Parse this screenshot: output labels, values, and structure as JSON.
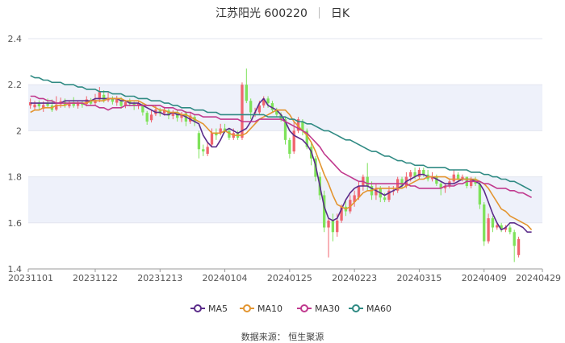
{
  "header": {
    "stock": "江苏阳光 600220",
    "period": "日K"
  },
  "source": "数据来源： 恒生聚源",
  "chart_data": {
    "type": "candlestick",
    "ylim": [
      1.4,
      2.4
    ],
    "yticks": [
      "1.4",
      "1.6",
      "1.8",
      "2",
      "2.2",
      "2.4"
    ],
    "ytick_values": [
      1.4,
      1.6,
      1.8,
      2.0,
      2.2,
      2.4
    ],
    "xticks": [
      "20231101",
      "20231122",
      "20231213",
      "20240104",
      "20240125",
      "20240223",
      "20240315",
      "20240409",
      "20240429"
    ],
    "n_days": 119,
    "xtick_index": [
      0,
      15,
      30,
      45,
      60,
      75,
      90,
      105,
      118
    ],
    "colors": {
      "up": "#f0646e",
      "down": "#7ee25a",
      "grid_band": "#eef1fa",
      "axis": "#999999"
    },
    "candles": [
      {
        "o": 2.11,
        "c": 2.124,
        "h": 2.14,
        "l": 2.096
      },
      {
        "o": 2.102,
        "c": 2.114,
        "h": 2.13,
        "l": 2.09
      },
      {
        "o": 2.118,
        "c": 2.106,
        "h": 2.132,
        "l": 2.094
      },
      {
        "o": 2.096,
        "c": 2.112,
        "h": 2.128,
        "l": 2.082
      },
      {
        "o": 2.12,
        "c": 2.108,
        "h": 2.14,
        "l": 2.098
      },
      {
        "o": 2.11,
        "c": 2.09,
        "h": 2.136,
        "l": 2.082
      },
      {
        "o": 2.092,
        "c": 2.114,
        "h": 2.15,
        "l": 2.086
      },
      {
        "o": 2.116,
        "c": 2.128,
        "h": 2.144,
        "l": 2.1
      },
      {
        "o": 2.126,
        "c": 2.11,
        "h": 2.14,
        "l": 2.1
      },
      {
        "o": 2.106,
        "c": 2.12,
        "h": 2.132,
        "l": 2.098
      },
      {
        "o": 2.124,
        "c": 2.108,
        "h": 2.146,
        "l": 2.1
      },
      {
        "o": 2.108,
        "c": 2.12,
        "h": 2.132,
        "l": 2.096
      },
      {
        "o": 2.12,
        "c": 2.112,
        "h": 2.132,
        "l": 2.1
      },
      {
        "o": 2.116,
        "c": 2.136,
        "h": 2.15,
        "l": 2.106
      },
      {
        "o": 2.132,
        "c": 2.118,
        "h": 2.142,
        "l": 2.108
      },
      {
        "o": 2.12,
        "c": 2.134,
        "h": 2.16,
        "l": 2.11
      },
      {
        "o": 2.136,
        "c": 2.168,
        "h": 2.19,
        "l": 2.124
      },
      {
        "o": 2.156,
        "c": 2.132,
        "h": 2.176,
        "l": 2.122
      },
      {
        "o": 2.132,
        "c": 2.142,
        "h": 2.166,
        "l": 2.124
      },
      {
        "o": 2.14,
        "c": 2.126,
        "h": 2.15,
        "l": 2.114
      },
      {
        "o": 2.122,
        "c": 2.138,
        "h": 2.152,
        "l": 2.108
      },
      {
        "o": 2.134,
        "c": 2.108,
        "h": 2.146,
        "l": 2.096
      },
      {
        "o": 2.11,
        "c": 2.124,
        "h": 2.134,
        "l": 2.098
      },
      {
        "o": 2.128,
        "c": 2.118,
        "h": 2.14,
        "l": 2.106
      },
      {
        "o": 2.118,
        "c": 2.108,
        "h": 2.126,
        "l": 2.09
      },
      {
        "o": 2.108,
        "c": 2.12,
        "h": 2.13,
        "l": 2.094
      },
      {
        "o": 2.112,
        "c": 2.08,
        "h": 2.118,
        "l": 2.066
      },
      {
        "o": 2.078,
        "c": 2.04,
        "h": 2.086,
        "l": 2.026
      },
      {
        "o": 2.046,
        "c": 2.07,
        "h": 2.09,
        "l": 2.036
      },
      {
        "o": 2.072,
        "c": 2.092,
        "h": 2.11,
        "l": 2.064
      },
      {
        "o": 2.088,
        "c": 2.074,
        "h": 2.1,
        "l": 2.062
      },
      {
        "o": 2.076,
        "c": 2.09,
        "h": 2.104,
        "l": 2.066
      },
      {
        "o": 2.088,
        "c": 2.066,
        "h": 2.096,
        "l": 2.05
      },
      {
        "o": 2.064,
        "c": 2.078,
        "h": 2.09,
        "l": 2.05
      },
      {
        "o": 2.08,
        "c": 2.056,
        "h": 2.088,
        "l": 2.04
      },
      {
        "o": 2.056,
        "c": 2.07,
        "h": 2.082,
        "l": 2.038
      },
      {
        "o": 2.076,
        "c": 2.04,
        "h": 2.086,
        "l": 2.02
      },
      {
        "o": 2.04,
        "c": 2.066,
        "h": 2.078,
        "l": 2.03
      },
      {
        "o": 2.06,
        "c": 2.04,
        "h": 2.07,
        "l": 2.02
      },
      {
        "o": 1.99,
        "c": 1.92,
        "h": 2.0,
        "l": 1.88
      },
      {
        "o": 1.92,
        "c": 1.91,
        "h": 1.94,
        "l": 1.89
      },
      {
        "o": 1.9,
        "c": 1.93,
        "h": 1.95,
        "l": 1.89
      },
      {
        "o": 1.94,
        "c": 1.99,
        "h": 2.01,
        "l": 1.93
      },
      {
        "o": 1.99,
        "c": 1.98,
        "h": 2.01,
        "l": 1.96
      },
      {
        "o": 1.99,
        "c": 2.01,
        "h": 2.03,
        "l": 1.98
      },
      {
        "o": 2.01,
        "c": 2.0,
        "h": 2.03,
        "l": 1.99
      },
      {
        "o": 2.0,
        "c": 1.97,
        "h": 2.01,
        "l": 1.96
      },
      {
        "o": 1.97,
        "c": 1.99,
        "h": 2.01,
        "l": 1.96
      },
      {
        "o": 1.99,
        "c": 1.97,
        "h": 2.0,
        "l": 1.96
      },
      {
        "o": 1.97,
        "c": 2.2,
        "h": 2.21,
        "l": 1.96
      },
      {
        "o": 2.2,
        "c": 2.13,
        "h": 2.27,
        "l": 2.12
      },
      {
        "o": 2.13,
        "c": 2.08,
        "h": 2.14,
        "l": 2.05
      },
      {
        "o": 2.08,
        "c": 2.08,
        "h": 2.1,
        "l": 2.06
      },
      {
        "o": 2.08,
        "c": 2.11,
        "h": 2.13,
        "l": 2.07
      },
      {
        "o": 2.11,
        "c": 2.14,
        "h": 2.15,
        "l": 2.1
      },
      {
        "o": 2.14,
        "c": 2.12,
        "h": 2.15,
        "l": 2.1
      },
      {
        "o": 2.12,
        "c": 2.09,
        "h": 2.13,
        "l": 2.08
      },
      {
        "o": 2.09,
        "c": 2.07,
        "h": 2.1,
        "l": 2.06
      },
      {
        "o": 2.07,
        "c": 2.05,
        "h": 2.08,
        "l": 2.04
      },
      {
        "o": 2.05,
        "c": 1.96,
        "h": 2.06,
        "l": 1.94
      },
      {
        "o": 1.96,
        "c": 1.9,
        "h": 1.97,
        "l": 1.88
      },
      {
        "o": 1.91,
        "c": 2.0,
        "h": 2.04,
        "l": 1.9
      },
      {
        "o": 2.0,
        "c": 2.05,
        "h": 2.06,
        "l": 1.99
      },
      {
        "o": 2.04,
        "c": 2.0,
        "h": 2.05,
        "l": 1.98
      },
      {
        "o": 2.0,
        "c": 1.93,
        "h": 2.01,
        "l": 1.92
      },
      {
        "o": 1.93,
        "c": 1.88,
        "h": 1.95,
        "l": 1.85
      },
      {
        "o": 1.88,
        "c": 1.8,
        "h": 1.89,
        "l": 1.78
      },
      {
        "o": 1.8,
        "c": 1.72,
        "h": 1.82,
        "l": 1.7
      },
      {
        "o": 1.72,
        "c": 1.58,
        "h": 1.74,
        "l": 1.56
      },
      {
        "o": 1.58,
        "c": 1.61,
        "h": 1.62,
        "l": 1.45
      },
      {
        "o": 1.61,
        "c": 1.56,
        "h": 1.64,
        "l": 1.52
      },
      {
        "o": 1.56,
        "c": 1.61,
        "h": 1.64,
        "l": 1.54
      },
      {
        "o": 1.61,
        "c": 1.67,
        "h": 1.68,
        "l": 1.6
      },
      {
        "o": 1.67,
        "c": 1.65,
        "h": 1.7,
        "l": 1.63
      },
      {
        "o": 1.65,
        "c": 1.7,
        "h": 1.72,
        "l": 1.64
      },
      {
        "o": 1.69,
        "c": 1.72,
        "h": 1.74,
        "l": 1.67
      },
      {
        "o": 1.71,
        "c": 1.76,
        "h": 1.78,
        "l": 1.7
      },
      {
        "o": 1.76,
        "c": 1.8,
        "h": 1.81,
        "l": 1.74
      },
      {
        "o": 1.8,
        "c": 1.76,
        "h": 1.86,
        "l": 1.74
      },
      {
        "o": 1.76,
        "c": 1.72,
        "h": 1.78,
        "l": 1.7
      },
      {
        "o": 1.72,
        "c": 1.75,
        "h": 1.77,
        "l": 1.7
      },
      {
        "o": 1.75,
        "c": 1.71,
        "h": 1.76,
        "l": 1.69
      },
      {
        "o": 1.71,
        "c": 1.7,
        "h": 1.73,
        "l": 1.69
      },
      {
        "o": 1.7,
        "c": 1.74,
        "h": 1.76,
        "l": 1.69
      },
      {
        "o": 1.74,
        "c": 1.74,
        "h": 1.76,
        "l": 1.72
      },
      {
        "o": 1.74,
        "c": 1.79,
        "h": 1.8,
        "l": 1.73
      },
      {
        "o": 1.79,
        "c": 1.76,
        "h": 1.8,
        "l": 1.75
      },
      {
        "o": 1.76,
        "c": 1.8,
        "h": 1.82,
        "l": 1.75
      },
      {
        "o": 1.8,
        "c": 1.82,
        "h": 1.83,
        "l": 1.78
      },
      {
        "o": 1.82,
        "c": 1.8,
        "h": 1.84,
        "l": 1.79
      },
      {
        "o": 1.8,
        "c": 1.83,
        "h": 1.84,
        "l": 1.79
      },
      {
        "o": 1.83,
        "c": 1.81,
        "h": 1.84,
        "l": 1.8
      },
      {
        "o": 1.81,
        "c": 1.79,
        "h": 1.83,
        "l": 1.78
      },
      {
        "o": 1.79,
        "c": 1.8,
        "h": 1.82,
        "l": 1.78
      },
      {
        "o": 1.8,
        "c": 1.77,
        "h": 1.81,
        "l": 1.76
      },
      {
        "o": 1.77,
        "c": 1.75,
        "h": 1.78,
        "l": 1.72
      },
      {
        "o": 1.75,
        "c": 1.76,
        "h": 1.77,
        "l": 1.73
      },
      {
        "o": 1.76,
        "c": 1.78,
        "h": 1.79,
        "l": 1.75
      },
      {
        "o": 1.78,
        "c": 1.81,
        "h": 1.83,
        "l": 1.77
      },
      {
        "o": 1.81,
        "c": 1.79,
        "h": 1.82,
        "l": 1.78
      },
      {
        "o": 1.79,
        "c": 1.8,
        "h": 1.81,
        "l": 1.78
      },
      {
        "o": 1.8,
        "c": 1.76,
        "h": 1.8,
        "l": 1.75
      },
      {
        "o": 1.76,
        "c": 1.79,
        "h": 1.8,
        "l": 1.75
      },
      {
        "o": 1.79,
        "c": 1.77,
        "h": 1.8,
        "l": 1.76
      },
      {
        "o": 1.77,
        "c": 1.68,
        "h": 1.78,
        "l": 1.66
      },
      {
        "o": 1.68,
        "c": 1.52,
        "h": 1.69,
        "l": 1.5
      },
      {
        "o": 1.52,
        "c": 1.62,
        "h": 1.64,
        "l": 1.51
      },
      {
        "o": 1.62,
        "c": 1.58,
        "h": 1.63,
        "l": 1.56
      },
      {
        "o": 1.58,
        "c": 1.59,
        "h": 1.6,
        "l": 1.57
      },
      {
        "o": 1.59,
        "c": 1.57,
        "h": 1.6,
        "l": 1.56
      },
      {
        "o": 1.57,
        "c": 1.58,
        "h": 1.59,
        "l": 1.56
      },
      {
        "o": 1.58,
        "c": 1.56,
        "h": 1.59,
        "l": 1.55
      },
      {
        "o": 1.56,
        "c": 1.5,
        "h": 1.57,
        "l": 1.43
      },
      {
        "o": 1.46,
        "c": 1.53,
        "h": 1.54,
        "l": 1.45
      }
    ],
    "series": [
      {
        "name": "MA5",
        "color": "#5b2c8a",
        "values": [
          2.12,
          2.12,
          2.12,
          2.12,
          2.12,
          2.12,
          2.12,
          2.12,
          2.13,
          2.13,
          2.13,
          2.13,
          2.13,
          2.13,
          2.13,
          2.14,
          2.14,
          2.14,
          2.14,
          2.14,
          2.14,
          2.13,
          2.13,
          2.12,
          2.12,
          2.12,
          2.11,
          2.1,
          2.09,
          2.08,
          2.08,
          2.07,
          2.07,
          2.08,
          2.07,
          2.07,
          2.06,
          2.05,
          2.04,
          2.03,
          1.98,
          1.95,
          1.93,
          1.93,
          1.96,
          2.0,
          2.01,
          2.0,
          1.99,
          2.0,
          2.01,
          2.04,
          2.08,
          2.12,
          2.14,
          2.11,
          2.1,
          2.09,
          2.07,
          2.04,
          2.0,
          1.98,
          1.97,
          1.96,
          1.94,
          1.91,
          1.85,
          1.76,
          1.67,
          1.62,
          1.61,
          1.62,
          1.66,
          1.7,
          1.73,
          1.75,
          1.76,
          1.76,
          1.76,
          1.75,
          1.74,
          1.73,
          1.72,
          1.73,
          1.74,
          1.75,
          1.76,
          1.78,
          1.79,
          1.8,
          1.81,
          1.81,
          1.8,
          1.8,
          1.79,
          1.78,
          1.77,
          1.77,
          1.77,
          1.78,
          1.79,
          1.79,
          1.79,
          1.78,
          1.77,
          1.74,
          1.69,
          1.64,
          1.6,
          1.57,
          1.58,
          1.6,
          1.6,
          1.59,
          1.58,
          1.56,
          1.56
        ]
      },
      {
        "name": "MA10",
        "color": "#e39530",
        "values": [
          2.08,
          2.09,
          2.09,
          2.1,
          2.1,
          2.1,
          2.11,
          2.11,
          2.11,
          2.12,
          2.12,
          2.12,
          2.12,
          2.12,
          2.13,
          2.13,
          2.13,
          2.13,
          2.14,
          2.14,
          2.14,
          2.14,
          2.13,
          2.13,
          2.13,
          2.13,
          2.12,
          2.11,
          2.11,
          2.1,
          2.09,
          2.09,
          2.08,
          2.08,
          2.08,
          2.07,
          2.07,
          2.06,
          2.05,
          2.04,
          2.03,
          2.01,
          1.99,
          1.99,
          1.99,
          2.0,
          1.99,
          1.98,
          1.98,
          1.98,
          1.99,
          2.01,
          2.03,
          2.05,
          2.06,
          2.07,
          2.08,
          2.09,
          2.09,
          2.09,
          2.07,
          2.04,
          2.02,
          2.0,
          1.98,
          1.95,
          1.91,
          1.86,
          1.81,
          1.77,
          1.72,
          1.68,
          1.67,
          1.66,
          1.67,
          1.69,
          1.71,
          1.73,
          1.74,
          1.74,
          1.75,
          1.75,
          1.75,
          1.75,
          1.75,
          1.75,
          1.75,
          1.76,
          1.77,
          1.78,
          1.79,
          1.79,
          1.8,
          1.8,
          1.8,
          1.8,
          1.8,
          1.79,
          1.79,
          1.79,
          1.79,
          1.79,
          1.79,
          1.79,
          1.78,
          1.77,
          1.75,
          1.72,
          1.69,
          1.66,
          1.65,
          1.63,
          1.62,
          1.61,
          1.6,
          1.59,
          1.57
        ]
      },
      {
        "name": "MA30",
        "color": "#c0398e",
        "values": [
          2.15,
          2.15,
          2.14,
          2.14,
          2.13,
          2.13,
          2.12,
          2.12,
          2.12,
          2.12,
          2.12,
          2.12,
          2.12,
          2.11,
          2.11,
          2.11,
          2.1,
          2.1,
          2.09,
          2.1,
          2.1,
          2.1,
          2.11,
          2.11,
          2.11,
          2.11,
          2.11,
          2.11,
          2.11,
          2.11,
          2.11,
          2.1,
          2.1,
          2.1,
          2.09,
          2.09,
          2.08,
          2.08,
          2.07,
          2.07,
          2.06,
          2.06,
          2.06,
          2.06,
          2.05,
          2.05,
          2.05,
          2.05,
          2.05,
          2.04,
          2.04,
          2.04,
          2.04,
          2.05,
          2.05,
          2.05,
          2.05,
          2.05,
          2.05,
          2.04,
          2.03,
          2.02,
          2.01,
          2.0,
          1.99,
          1.97,
          1.95,
          1.93,
          1.9,
          1.88,
          1.86,
          1.84,
          1.82,
          1.81,
          1.8,
          1.79,
          1.78,
          1.78,
          1.77,
          1.77,
          1.77,
          1.77,
          1.77,
          1.77,
          1.77,
          1.77,
          1.77,
          1.77,
          1.76,
          1.76,
          1.75,
          1.75,
          1.75,
          1.75,
          1.75,
          1.75,
          1.76,
          1.76,
          1.76,
          1.77,
          1.77,
          1.78,
          1.78,
          1.78,
          1.78,
          1.77,
          1.77,
          1.76,
          1.75,
          1.75,
          1.75,
          1.74,
          1.74,
          1.73,
          1.73,
          1.72,
          1.71
        ]
      },
      {
        "name": "MA60",
        "color": "#2f8a83",
        "values": [
          2.24,
          2.23,
          2.23,
          2.22,
          2.22,
          2.21,
          2.21,
          2.21,
          2.2,
          2.2,
          2.2,
          2.19,
          2.19,
          2.18,
          2.18,
          2.18,
          2.17,
          2.17,
          2.17,
          2.16,
          2.16,
          2.16,
          2.15,
          2.15,
          2.15,
          2.14,
          2.14,
          2.14,
          2.13,
          2.13,
          2.13,
          2.12,
          2.12,
          2.11,
          2.11,
          2.1,
          2.1,
          2.1,
          2.09,
          2.09,
          2.09,
          2.08,
          2.08,
          2.08,
          2.07,
          2.07,
          2.07,
          2.07,
          2.07,
          2.07,
          2.07,
          2.07,
          2.07,
          2.07,
          2.07,
          2.06,
          2.06,
          2.06,
          2.06,
          2.06,
          2.05,
          2.05,
          2.04,
          2.04,
          2.03,
          2.03,
          2.02,
          2.01,
          2.0,
          2.0,
          1.99,
          1.98,
          1.97,
          1.96,
          1.96,
          1.95,
          1.94,
          1.93,
          1.92,
          1.91,
          1.91,
          1.9,
          1.89,
          1.89,
          1.88,
          1.87,
          1.87,
          1.86,
          1.86,
          1.85,
          1.85,
          1.85,
          1.84,
          1.84,
          1.84,
          1.84,
          1.84,
          1.83,
          1.83,
          1.83,
          1.83,
          1.83,
          1.82,
          1.82,
          1.82,
          1.81,
          1.81,
          1.8,
          1.8,
          1.79,
          1.79,
          1.78,
          1.78,
          1.77,
          1.76,
          1.75,
          1.74
        ]
      }
    ],
    "legend_position": "bottom"
  }
}
